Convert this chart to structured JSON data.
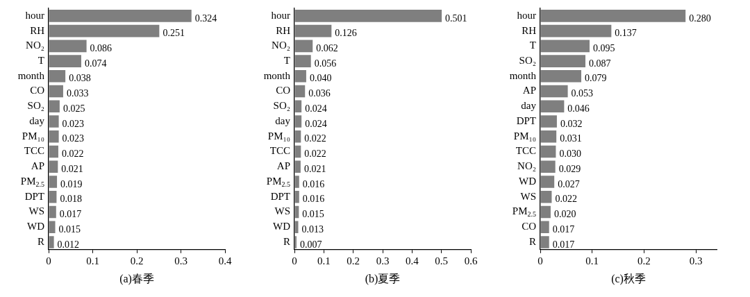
{
  "chart_data": [
    {
      "type": "bar",
      "orientation": "horizontal",
      "xlabel": "(a)春季",
      "color": "#7f7f7f",
      "categories": [
        "hour",
        "RH",
        "NO₂",
        "T",
        "month",
        "CO",
        "SO₂",
        "day",
        "PM₁₀",
        "TCC",
        "AP",
        "PM$_{2.5}$",
        "DPT",
        "WS",
        "WD",
        "R"
      ],
      "values": [
        0.324,
        0.251,
        0.086,
        0.074,
        0.038,
        0.033,
        0.025,
        0.023,
        0.023,
        0.022,
        0.021,
        0.019,
        0.018,
        0.017,
        0.015,
        0.012
      ],
      "value_labels": [
        "0.324",
        "0.251",
        "0.086",
        "0.074",
        "0.038",
        "0.033",
        "0.025",
        "0.023",
        "0.023",
        "0.022",
        "0.021",
        "0.019",
        "0.018",
        "0.017",
        "0.015",
        "0.012"
      ],
      "xlim": [
        0,
        0.4
      ],
      "xticks": [
        0,
        0.1,
        0.2,
        0.3,
        0.4
      ]
    },
    {
      "type": "bar",
      "orientation": "horizontal",
      "xlabel": "(b)夏季",
      "color": "#7f7f7f",
      "categories": [
        "hour",
        "RH",
        "NO₂",
        "T",
        "month",
        "CO",
        "SO₂",
        "day",
        "PM₁₀",
        "TCC",
        "AP",
        "PM$_{2.5}$",
        "DPT",
        "WS",
        "WD",
        "R"
      ],
      "values": [
        0.501,
        0.126,
        0.062,
        0.056,
        0.04,
        0.036,
        0.024,
        0.024,
        0.022,
        0.022,
        0.021,
        0.016,
        0.016,
        0.015,
        0.013,
        0.007
      ],
      "value_labels": [
        "0.501",
        "0.126",
        "0.062",
        "0.056",
        "0.040",
        "0.036",
        "0.024",
        "0.024",
        "0.022",
        "0.022",
        "0.021",
        "0.016",
        "0.016",
        "0.015",
        "0.013",
        "0.007"
      ],
      "xlim": [
        0,
        0.6
      ],
      "xticks": [
        0,
        0.1,
        0.2,
        0.3,
        0.4,
        0.5,
        0.6
      ]
    },
    {
      "type": "bar",
      "orientation": "horizontal",
      "xlabel": "(c)秋季",
      "color": "#7f7f7f",
      "categories": [
        "hour",
        "RH",
        "T",
        "SO₂",
        "month",
        "AP",
        "day",
        "DPT",
        "PM₁₀",
        "TCC",
        "NO₂",
        "WD",
        "WS",
        "PM$_{2.5}$",
        "CO",
        "R"
      ],
      "values": [
        0.28,
        0.137,
        0.095,
        0.087,
        0.079,
        0.053,
        0.046,
        0.032,
        0.031,
        0.03,
        0.029,
        0.027,
        0.022,
        0.02,
        0.017,
        0.017
      ],
      "value_labels": [
        "0.280",
        "0.137",
        "0.095",
        "0.087",
        "0.079",
        "0.053",
        "0.046",
        "0.032",
        "0.031",
        "0.030",
        "0.029",
        "0.027",
        "0.022",
        "0.020",
        "0.017",
        "0.017"
      ],
      "xlim": [
        0,
        0.34
      ],
      "xticks": [
        0,
        0.1,
        0.2,
        0.3
      ]
    }
  ]
}
